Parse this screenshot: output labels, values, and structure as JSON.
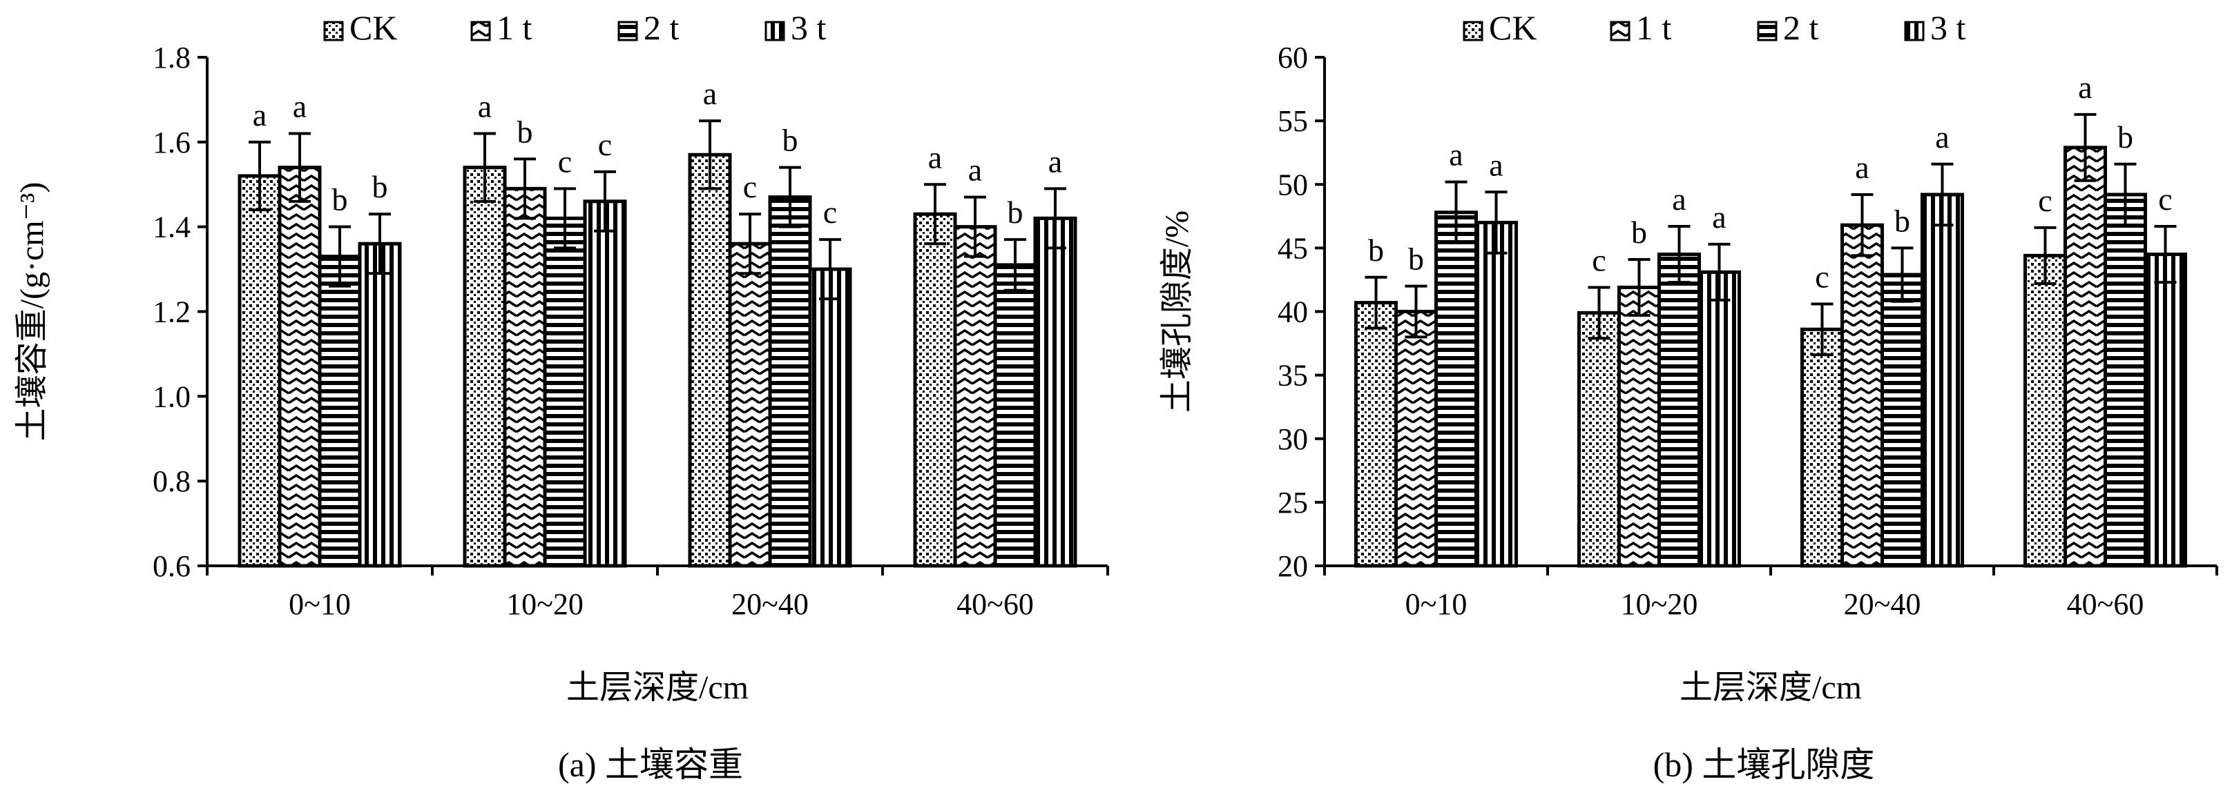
{
  "legend_labels": [
    "CK",
    "1 t",
    "2 t",
    "3 t"
  ],
  "chart_data": [
    {
      "type": "bar",
      "panel": "a",
      "caption": "(a) 土壤容重",
      "xlabel": "土层深度/cm",
      "ylabel": "土壤容重/(g·cm⁻³)",
      "ylim": [
        0.6,
        1.8
      ],
      "yticks": [
        0.6,
        0.8,
        1.0,
        1.2,
        1.4,
        1.6,
        1.8
      ],
      "yticklabels": [
        "0.6",
        "0.8",
        "1.0",
        "1.2",
        "1.4",
        "1.6",
        "1.8"
      ],
      "categories": [
        "0~10",
        "10~20",
        "20~40",
        "40~60"
      ],
      "legend": "top",
      "grid": false,
      "series": [
        {
          "name": "CK",
          "values": [
            1.52,
            1.54,
            1.57,
            1.43
          ],
          "errors": [
            0.08,
            0.08,
            0.08,
            0.07
          ],
          "labels": [
            "a",
            "a",
            "a",
            "a"
          ]
        },
        {
          "name": "1 t",
          "values": [
            1.54,
            1.49,
            1.36,
            1.4
          ],
          "errors": [
            0.08,
            0.07,
            0.07,
            0.07
          ],
          "labels": [
            "a",
            "b",
            "c",
            "a"
          ]
        },
        {
          "name": "2 t",
          "values": [
            1.33,
            1.42,
            1.47,
            1.31
          ],
          "errors": [
            0.07,
            0.07,
            0.07,
            0.06
          ],
          "labels": [
            "b",
            "c",
            "b",
            "b"
          ]
        },
        {
          "name": "3 t",
          "values": [
            1.36,
            1.46,
            1.3,
            1.42
          ],
          "errors": [
            0.07,
            0.07,
            0.07,
            0.07
          ],
          "labels": [
            "b",
            "c",
            "c",
            "a"
          ]
        }
      ]
    },
    {
      "type": "bar",
      "panel": "b",
      "caption": "(b) 土壤孔隙度",
      "xlabel": "土层深度/cm",
      "ylabel": "土壤孔隙度/%",
      "ylim": [
        20,
        60
      ],
      "yticks": [
        20,
        25,
        30,
        35,
        40,
        45,
        50,
        55,
        60
      ],
      "yticklabels": [
        "20",
        "25",
        "30",
        "35",
        "40",
        "45",
        "50",
        "55",
        "60"
      ],
      "categories": [
        "0~10",
        "10~20",
        "20~40",
        "40~60"
      ],
      "legend": "top",
      "grid": false,
      "series": [
        {
          "name": "CK",
          "values": [
            40.7,
            39.9,
            38.6,
            44.4
          ],
          "errors": [
            2.0,
            2.0,
            2.0,
            2.2
          ],
          "labels": [
            "b",
            "c",
            "c",
            "c"
          ]
        },
        {
          "name": "1 t",
          "values": [
            40.0,
            41.9,
            46.8,
            52.9
          ],
          "errors": [
            2.0,
            2.2,
            2.4,
            2.6
          ],
          "labels": [
            "b",
            "b",
            "a",
            "a"
          ]
        },
        {
          "name": "2 t",
          "values": [
            47.8,
            44.5,
            42.9,
            49.2
          ],
          "errors": [
            2.4,
            2.2,
            2.1,
            2.4
          ],
          "labels": [
            "a",
            "a",
            "b",
            "b"
          ]
        },
        {
          "name": "3 t",
          "values": [
            47.0,
            43.1,
            49.2,
            44.5
          ],
          "errors": [
            2.4,
            2.2,
            2.4,
            2.2
          ],
          "labels": [
            "a",
            "a",
            "a",
            "c"
          ]
        }
      ]
    }
  ]
}
